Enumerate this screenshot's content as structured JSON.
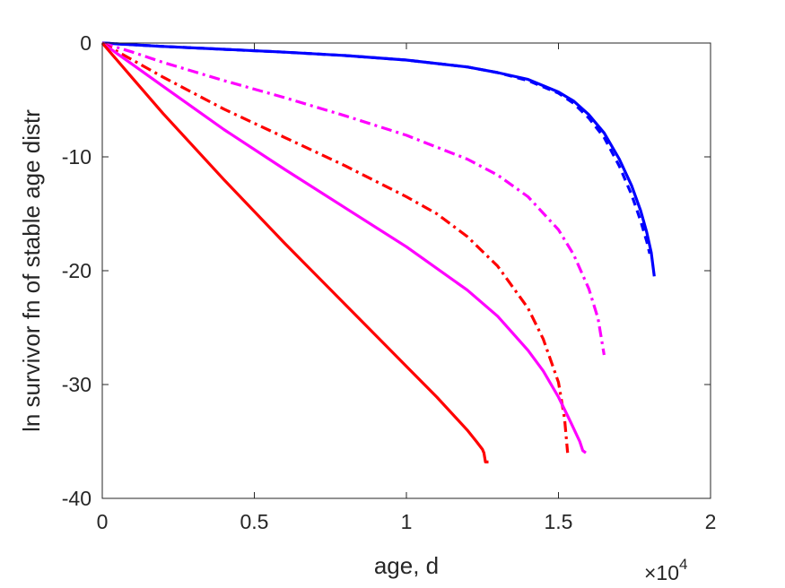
{
  "chart_data": {
    "type": "line",
    "title": "",
    "xlabel": "age, d",
    "ylabel": "ln survivor fn of stable age distr",
    "x_multiplier": {
      "base": "×10",
      "exponent": "4"
    },
    "xlim": [
      0,
      20000
    ],
    "ylim": [
      -40,
      0
    ],
    "x_ticks": [
      0,
      5000,
      10000,
      15000,
      20000
    ],
    "x_tick_labels": [
      "0",
      "0.5",
      "1",
      "1.5",
      "2"
    ],
    "y_ticks": [
      -40,
      -30,
      -20,
      -10,
      0
    ],
    "y_tick_labels": [
      "-40",
      "-30",
      "-20",
      "-10",
      "0"
    ],
    "grid": false,
    "box": true,
    "series": [
      {
        "color": "#0000ff",
        "style": "solid",
        "x": [
          0,
          2000,
          4000,
          6000,
          8000,
          10000,
          12000,
          13000,
          14000,
          15000,
          15500,
          16000,
          16500,
          17000,
          17400,
          17700,
          17900,
          18050,
          18150
        ],
        "y": [
          0,
          -0.3,
          -0.55,
          -0.8,
          -1.1,
          -1.5,
          -2.1,
          -2.6,
          -3.2,
          -4.3,
          -5.1,
          -6.3,
          -7.9,
          -10.2,
          -12.5,
          -14.7,
          -16.6,
          -18.4,
          -20.5
        ]
      },
      {
        "color": "#0000ff",
        "style": "dashed",
        "x": [
          0,
          2000,
          4000,
          6000,
          8000,
          10000,
          12000,
          13000,
          14000,
          15000,
          15500,
          16000,
          16500,
          17000,
          17400,
          17700,
          17900,
          18000
        ],
        "y": [
          0,
          -0.3,
          -0.55,
          -0.8,
          -1.1,
          -1.5,
          -2.1,
          -2.6,
          -3.3,
          -4.4,
          -5.3,
          -6.6,
          -8.3,
          -10.8,
          -13.3,
          -15.6,
          -17.4,
          -18.5
        ]
      },
      {
        "color": "#ff00ff",
        "style": "dashdot",
        "x": [
          0,
          1000,
          2000,
          4000,
          6000,
          8000,
          10000,
          12000,
          13000,
          14000,
          15000,
          15500,
          16000,
          16300,
          16500
        ],
        "y": [
          0,
          -0.8,
          -1.7,
          -3.3,
          -4.8,
          -6.4,
          -8.1,
          -10.2,
          -11.6,
          -13.5,
          -16.4,
          -18.6,
          -21.6,
          -24.2,
          -27.4
        ]
      },
      {
        "color": "#ff0000",
        "style": "dashdot",
        "x": [
          0,
          1000,
          2000,
          4000,
          6000,
          8000,
          10000,
          11000,
          12000,
          13000,
          14000,
          14500,
          15000,
          15200,
          15300
        ],
        "y": [
          0,
          -1.5,
          -3.0,
          -5.8,
          -8.3,
          -10.8,
          -13.5,
          -15.0,
          -17.0,
          -19.6,
          -23.3,
          -26.0,
          -29.8,
          -33.0,
          -36.0
        ]
      },
      {
        "color": "#ff00ff",
        "style": "solid",
        "x": [
          0,
          1000,
          2000,
          4000,
          6000,
          8000,
          10000,
          12000,
          13000,
          14000,
          14500,
          15000,
          15400,
          15700,
          15800,
          15900
        ],
        "y": [
          0,
          -1.9,
          -3.8,
          -7.6,
          -11.1,
          -14.5,
          -17.9,
          -21.7,
          -24.0,
          -27.0,
          -28.8,
          -31.1,
          -33.3,
          -35.0,
          -35.8,
          -36.0
        ]
      },
      {
        "color": "#ff0000",
        "style": "solid",
        "x": [
          0,
          1000,
          2000,
          4000,
          6000,
          8000,
          10000,
          11000,
          12000,
          12300,
          12500,
          12550,
          12600,
          12700
        ],
        "y": [
          0,
          -3.1,
          -6.2,
          -12.0,
          -17.6,
          -23.0,
          -28.4,
          -31.1,
          -34.0,
          -35.0,
          -35.7,
          -36.0,
          -36.8,
          -36.8
        ]
      }
    ]
  }
}
